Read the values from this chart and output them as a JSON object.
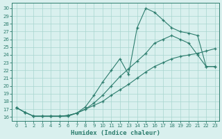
{
  "xlabel": "Humidex (Indice chaleur)",
  "x": [
    0,
    1,
    2,
    3,
    4,
    5,
    6,
    7,
    8,
    9,
    10,
    11,
    12,
    13,
    14,
    15,
    16,
    17,
    18,
    19,
    20,
    21,
    22,
    23
  ],
  "line1_y": [
    17.2,
    16.6,
    16.1,
    16.1,
    16.1,
    16.1,
    16.1,
    16.5,
    17.3,
    18.8,
    20.5,
    22.0,
    23.5,
    21.5,
    27.5,
    30.0,
    29.5,
    28.5,
    27.5,
    27.0,
    26.8,
    26.5,
    22.5,
    22.5
  ],
  "line2_y": [
    17.2,
    16.6,
    16.1,
    16.1,
    16.1,
    16.1,
    16.2,
    16.5,
    17.0,
    17.8,
    18.8,
    20.0,
    21.2,
    22.2,
    23.2,
    24.2,
    25.5,
    26.0,
    26.5,
    26.0,
    25.5,
    24.0,
    22.5,
    22.5
  ],
  "line3_y": [
    17.2,
    16.6,
    16.1,
    16.1,
    16.1,
    16.1,
    16.2,
    16.5,
    17.0,
    17.5,
    18.0,
    18.8,
    19.5,
    20.2,
    21.0,
    21.8,
    22.5,
    23.0,
    23.5,
    23.8,
    24.0,
    24.2,
    24.5,
    24.8
  ],
  "line_color": "#2d7d6e",
  "bg_color": "#d9f0ee",
  "grid_color": "#a8d5cf",
  "ylim_min": 15.5,
  "ylim_max": 30.7,
  "yticks": [
    16,
    17,
    18,
    19,
    20,
    21,
    22,
    23,
    24,
    25,
    26,
    27,
    28,
    29,
    30
  ],
  "xticks": [
    0,
    1,
    2,
    3,
    4,
    5,
    6,
    7,
    8,
    9,
    10,
    11,
    12,
    13,
    14,
    15,
    16,
    17,
    18,
    19,
    20,
    21,
    22,
    23
  ]
}
